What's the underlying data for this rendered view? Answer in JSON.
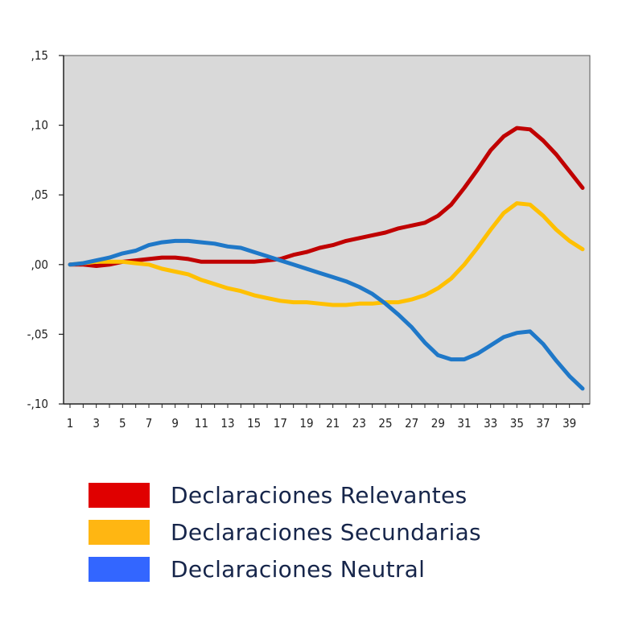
{
  "chart_data": {
    "type": "line",
    "title": "",
    "xlabel": "",
    "ylabel": "",
    "xlim": [
      1,
      40
    ],
    "ylim": [
      -0.1,
      0.15
    ],
    "y_ticks": [
      0.15,
      0.1,
      0.05,
      0.0,
      -0.05,
      -0.1
    ],
    "y_tick_labels": [
      ",15",
      ",10",
      ",05",
      ",00",
      "-,05",
      "-,10"
    ],
    "x_tick_labels": [
      "1",
      "3",
      "5",
      "7",
      "9",
      "11",
      "13",
      "15",
      "17",
      "19",
      "21",
      "23",
      "25",
      "27",
      "29",
      "31",
      "33",
      "35",
      "37",
      "39"
    ],
    "x": [
      1,
      2,
      3,
      4,
      5,
      6,
      7,
      8,
      9,
      10,
      11,
      12,
      13,
      14,
      15,
      16,
      17,
      18,
      19,
      20,
      21,
      22,
      23,
      24,
      25,
      26,
      27,
      28,
      29,
      30,
      31,
      32,
      33,
      34,
      35,
      36,
      37,
      38,
      39,
      40
    ],
    "background_color": "#d9d9d9",
    "grid": false,
    "legend_position": "bottom",
    "series": [
      {
        "name": "Declaraciones Relevantes",
        "color": "#c00000",
        "values": [
          0.0,
          0.0,
          -0.001,
          0.0,
          0.002,
          0.003,
          0.004,
          0.005,
          0.005,
          0.004,
          0.002,
          0.002,
          0.002,
          0.002,
          0.002,
          0.003,
          0.004,
          0.007,
          0.009,
          0.012,
          0.014,
          0.017,
          0.019,
          0.021,
          0.023,
          0.026,
          0.028,
          0.03,
          0.035,
          0.043,
          0.055,
          0.068,
          0.082,
          0.092,
          0.098,
          0.097,
          0.089,
          0.079,
          0.067,
          0.055
        ]
      },
      {
        "name": "Declaraciones Secundarias",
        "color": "#ffc000",
        "values": [
          0.0,
          0.001,
          0.002,
          0.002,
          0.002,
          0.001,
          0.0,
          -0.003,
          -0.005,
          -0.007,
          -0.011,
          -0.014,
          -0.017,
          -0.019,
          -0.022,
          -0.024,
          -0.026,
          -0.027,
          -0.027,
          -0.028,
          -0.029,
          -0.029,
          -0.028,
          -0.028,
          -0.027,
          -0.027,
          -0.025,
          -0.022,
          -0.017,
          -0.01,
          0.0,
          0.012,
          0.025,
          0.037,
          0.044,
          0.043,
          0.035,
          0.025,
          0.017,
          0.011
        ]
      },
      {
        "name": "Declaraciones Neutral",
        "color": "#1f78c8",
        "values": [
          0.0,
          0.001,
          0.003,
          0.005,
          0.008,
          0.01,
          0.014,
          0.016,
          0.017,
          0.017,
          0.016,
          0.015,
          0.013,
          0.012,
          0.009,
          0.006,
          0.003,
          0.0,
          -0.003,
          -0.006,
          -0.009,
          -0.012,
          -0.016,
          -0.021,
          -0.028,
          -0.036,
          -0.045,
          -0.056,
          -0.065,
          -0.068,
          -0.068,
          -0.064,
          -0.058,
          -0.052,
          -0.049,
          -0.048,
          -0.057,
          -0.069,
          -0.08,
          -0.089
        ]
      }
    ]
  },
  "legend": [
    {
      "label": "Declaraciones Relevantes",
      "color": "#e00000"
    },
    {
      "label": "Declaraciones Secundarias",
      "color": "#ffb612"
    },
    {
      "label": "Declaraciones Neutral",
      "color": "#3366ff"
    }
  ]
}
